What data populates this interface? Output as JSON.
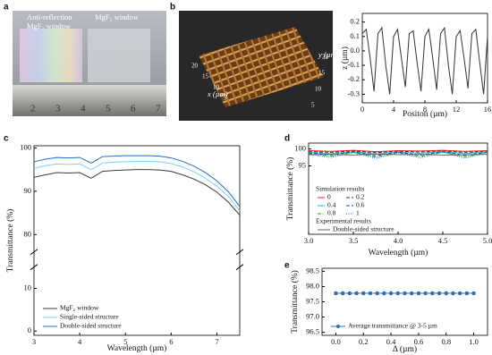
{
  "photo": {
    "panel": "a",
    "labels": [
      "Anti-reflection",
      "MgF₂ window",
      "MgF₂ window"
    ],
    "ruler": [
      2,
      3,
      4,
      5,
      6,
      7
    ]
  },
  "surface": {
    "panel": "b",
    "xlabel": "x (µm)",
    "ylabel": "y (µm)",
    "xticks": [
      20,
      15,
      10,
      5
    ],
    "yticks": [
      5,
      10,
      15,
      20
    ]
  },
  "chart_data": [
    {
      "type": "line",
      "xlabel": "Positon (µm)",
      "ylabel": "z (µm)",
      "xlim": [
        0,
        16
      ],
      "xticks": [
        0,
        4,
        8,
        12,
        16
      ],
      "ylim": [
        -0.36,
        0.26
      ],
      "yticks": [
        -0.3,
        -0.2,
        -0.1,
        {
          "value": 0,
          "label": "0.0"
        },
        0.1,
        0.2
      ],
      "x": [
        0,
        0.5,
        1,
        1.5,
        2,
        2.5,
        3,
        3.5,
        4,
        4.5,
        5,
        5.5,
        6,
        6.5,
        7,
        7.5,
        8,
        8.5,
        9,
        9.5,
        10,
        10.5,
        11,
        11.5,
        12,
        12.5,
        13,
        13.5,
        14,
        14.5,
        15,
        15.5,
        16
      ],
      "series": [
        {
          "color": "#333333",
          "style": "solid",
          "values": [
            0.12,
            0.15,
            -0.05,
            -0.28,
            0.12,
            0.16,
            -0.1,
            -0.3,
            0.1,
            0.15,
            -0.05,
            -0.25,
            0.12,
            0.14,
            -0.08,
            -0.28,
            0.1,
            0.15,
            -0.05,
            -0.27,
            0.12,
            0.16,
            -0.1,
            -0.3,
            0.1,
            0.14,
            -0.05,
            -0.26,
            0.12,
            0.15,
            -0.08,
            -0.3,
            0.1
          ]
        }
      ]
    },
    {
      "type": "line",
      "panel": "c",
      "xlabel": "Wavelength (µm)",
      "ylabel": "Transmittance (%)",
      "xlim": [
        3,
        7.5
      ],
      "xticks": [
        3,
        4,
        5,
        6,
        7
      ],
      "ylim": [
        -1,
        100.5
      ],
      "ybreak": [
        15,
        76
      ],
      "yticks": [
        0,
        10,
        80,
        90,
        100
      ],
      "legend": "lower left",
      "x": [
        3,
        3.25,
        3.5,
        3.75,
        4,
        4.25,
        4.5,
        4.75,
        5,
        5.25,
        5.5,
        5.75,
        6,
        6.25,
        6.5,
        6.75,
        7,
        7.25,
        7.5
      ],
      "series": [
        {
          "name": "MgF₂ window",
          "color": "#3a3a3a",
          "style": "solid",
          "values": [
            93.2,
            93.8,
            94.3,
            94.2,
            94.3,
            93.0,
            94.6,
            94.8,
            94.9,
            95.0,
            95.0,
            94.9,
            94.6,
            93.8,
            92.8,
            91.5,
            89.8,
            87.5,
            84.5
          ]
        },
        {
          "name": "Single-sided structure",
          "color": "#7fd3f0",
          "style": "solid",
          "values": [
            95.3,
            95.9,
            96.3,
            96.2,
            96.3,
            95.0,
            96.5,
            96.7,
            96.8,
            96.9,
            96.9,
            96.8,
            96.4,
            95.6,
            94.5,
            93.0,
            91.2,
            88.8,
            85.5
          ]
        },
        {
          "name": "Double-sided structure",
          "color": "#1f6fc4",
          "style": "solid",
          "values": [
            96.8,
            97.4,
            97.8,
            97.7,
            97.8,
            96.5,
            98.0,
            98.1,
            98.2,
            98.2,
            98.2,
            98.1,
            97.7,
            96.9,
            95.8,
            94.3,
            92.4,
            89.9,
            86.5
          ]
        }
      ]
    },
    {
      "type": "line",
      "panel": "d",
      "xlabel": "Wavelength (µm)",
      "ylabel": "Transmittance (%)",
      "xlim": [
        3,
        5
      ],
      "xticks": [
        {
          "value": 3,
          "label": "3.0"
        },
        3.5,
        {
          "value": 4,
          "label": "4.0"
        },
        4.5,
        {
          "value": 5,
          "label": "5.0"
        }
      ],
      "ylim": [
        74.75,
        101.75
      ],
      "yticks": [
        95,
        100
      ],
      "legend_titles": [
        "Simulation results",
        "Experimental results"
      ],
      "x": [
        3,
        3.25,
        3.5,
        3.75,
        4,
        4.25,
        4.5,
        4.75,
        5
      ],
      "series": [
        {
          "name": "0",
          "color": "#e41a1c",
          "style": "solid",
          "values": [
            99.5,
            99.3,
            99.6,
            99.2,
            99.5,
            99.4,
            99.6,
            99.3,
            99.5
          ]
        },
        {
          "name": "0.2",
          "color": "#333333",
          "style": "dashed",
          "values": [
            99.2,
            99.0,
            99.4,
            98.9,
            99.3,
            99.1,
            99.4,
            99.0,
            99.3
          ]
        },
        {
          "name": "0.4",
          "color": "#17becf",
          "style": "solid",
          "values": [
            99.0,
            98.6,
            99.2,
            98.5,
            99.1,
            98.7,
            99.3,
            98.6,
            99.2
          ]
        },
        {
          "name": "0.6",
          "color": "#1f3fbf",
          "style": "dashed",
          "values": [
            98.8,
            98.3,
            99.1,
            98.0,
            99.0,
            98.2,
            99.2,
            98.1,
            99.1
          ]
        },
        {
          "name": "0.8",
          "color": "#2ca02c",
          "style": "dashdot",
          "values": [
            98.6,
            97.9,
            99.0,
            97.6,
            98.9,
            97.8,
            99.1,
            97.7,
            99.0
          ]
        },
        {
          "name": "1",
          "color": "#1f77b4",
          "style": "dotted",
          "values": [
            98.4,
            97.5,
            98.9,
            97.2,
            98.8,
            97.4,
            99.0,
            97.3,
            98.9
          ]
        },
        {
          "name": "Double-sided structure",
          "color": "#666666",
          "style": "solid",
          "values": [
            98.3,
            98.4,
            98.2,
            98.5,
            98.3,
            98.4,
            98.2,
            98.3,
            98.4
          ]
        }
      ]
    },
    {
      "type": "line",
      "panel": "e",
      "xlabel": "Δ (µm)",
      "ylabel": "Transmittance (%)",
      "xlim": [
        -0.1,
        1.1
      ],
      "xticks": [
        {
          "value": 0,
          "label": "0.0"
        },
        0.2,
        0.4,
        0.6,
        0.8,
        {
          "value": 1,
          "label": "1.0"
        }
      ],
      "ylim": [
        96.4,
        98.6
      ],
      "yticks": [
        96.5,
        {
          "value": 97,
          "label": "97.0"
        },
        97.5,
        {
          "value": 98,
          "label": "98.0"
        },
        98.5
      ],
      "marker": "circle",
      "legend": "lower left",
      "x": [
        0,
        0.05,
        0.1,
        0.15,
        0.2,
        0.25,
        0.3,
        0.35,
        0.4,
        0.45,
        0.5,
        0.55,
        0.6,
        0.65,
        0.7,
        0.75,
        0.8,
        0.85,
        0.9,
        0.95,
        1
      ],
      "series": [
        {
          "name": "Average transmittance @ 3-5 µm",
          "color": "#2e75b6",
          "style": "solid",
          "values": [
            97.78,
            97.78,
            97.78,
            97.78,
            97.78,
            97.78,
            97.78,
            97.78,
            97.78,
            97.78,
            97.78,
            97.78,
            97.78,
            97.78,
            97.78,
            97.78,
            97.78,
            97.78,
            97.78,
            97.78,
            97.78
          ]
        }
      ]
    }
  ]
}
